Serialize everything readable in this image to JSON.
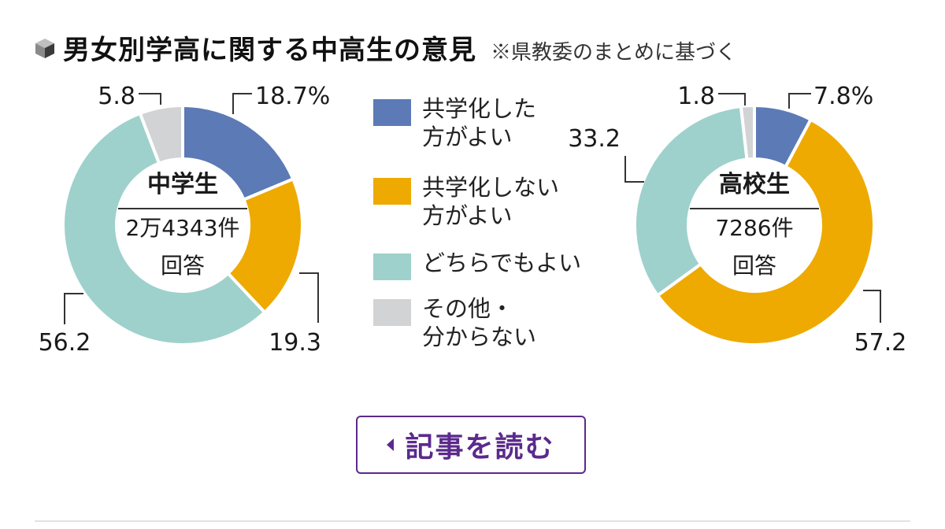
{
  "header": {
    "title": "男女別学高に関する中高生の意見",
    "note": "※県教委のまとめに基づく"
  },
  "colors": {
    "kyogaku_yoi": "#5b7ab6",
    "kyogaku_shinai": "#eeaa00",
    "dochira": "#9ed1cc",
    "sonota": "#d2d3d5"
  },
  "legend": [
    {
      "label": "共学化した方がよい",
      "line1": "共学化した",
      "line2": "方がよい",
      "color": "#5b7ab6"
    },
    {
      "label": "共学化しない方がよい",
      "line1": "共学化しない",
      "line2": "方がよい",
      "color": "#eeaa00"
    },
    {
      "label": "どちらでもよい",
      "line1": "どちらでもよい",
      "line2": "",
      "color": "#9ed1cc"
    },
    {
      "label": "その他・分からない",
      "line1": "その他・",
      "line2": "分からない",
      "color": "#d2d3d5"
    }
  ],
  "chart_data": [
    {
      "type": "pie",
      "center_title": "中学生",
      "center_line1": "2万4343件",
      "center_line2": "回答",
      "categories": [
        "共学化した方がよい",
        "共学化しない方がよい",
        "どちらでもよい",
        "その他・分からない"
      ],
      "values": [
        18.7,
        19.3,
        56.2,
        5.8
      ],
      "value_labels": [
        "18.7%",
        "19.3",
        "56.2",
        "5.8"
      ]
    },
    {
      "type": "pie",
      "center_title": "高校生",
      "center_line1": "7286件",
      "center_line2": "回答",
      "categories": [
        "共学化した方がよい",
        "共学化しない方がよい",
        "どちらでもよい",
        "その他・分からない"
      ],
      "values": [
        7.8,
        57.2,
        33.2,
        1.8
      ],
      "value_labels": [
        "7.8%",
        "57.2",
        "33.2",
        "1.8"
      ]
    }
  ],
  "button": {
    "label": "記事を読む"
  }
}
